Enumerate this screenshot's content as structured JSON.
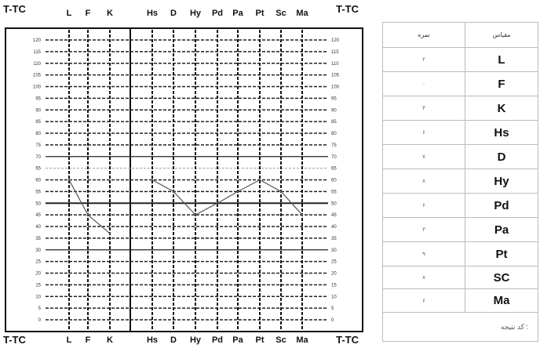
{
  "chart_data": {
    "type": "line",
    "corner_label": "T-TC",
    "categories": [
      "L",
      "F",
      "K",
      "Hs",
      "D",
      "Hy",
      "Pd",
      "Pa",
      "Pt",
      "Sc",
      "Ma"
    ],
    "y_ticks": [
      0,
      5,
      10,
      15,
      20,
      25,
      30,
      35,
      40,
      45,
      50,
      55,
      60,
      65,
      70,
      75,
      80,
      85,
      90,
      95,
      100,
      105,
      110,
      115,
      120
    ],
    "ylim": [
      0,
      120
    ],
    "grid": true,
    "series": [
      {
        "segment": "validity",
        "x": [
          "L",
          "F",
          "K"
        ],
        "values": [
          60,
          45,
          37
        ]
      },
      {
        "segment": "clinical",
        "x": [
          "Hs",
          "D",
          "Hy",
          "Pd",
          "Pa",
          "Pt",
          "Sc",
          "Ma"
        ],
        "values": [
          60,
          55,
          45,
          50,
          55,
          60,
          55,
          45
        ]
      }
    ]
  },
  "table": {
    "header_scale": "مقیاس",
    "header_score": "نمره",
    "rows": [
      {
        "scale": "L",
        "score": "۲"
      },
      {
        "scale": "F",
        "score": "۰"
      },
      {
        "scale": "K",
        "score": "۳"
      },
      {
        "scale": "Hs",
        "score": "۶"
      },
      {
        "scale": "D",
        "score": "۷"
      },
      {
        "scale": "Hy",
        "score": "۸"
      },
      {
        "scale": "Pd",
        "score": "۶"
      },
      {
        "scale": "Pa",
        "score": "۳"
      },
      {
        "scale": "Pt",
        "score": "۹"
      },
      {
        "scale": "SC",
        "score": "۸"
      },
      {
        "scale": "Ma",
        "score": "۶"
      }
    ],
    "footer": "کد نتیجه :"
  }
}
